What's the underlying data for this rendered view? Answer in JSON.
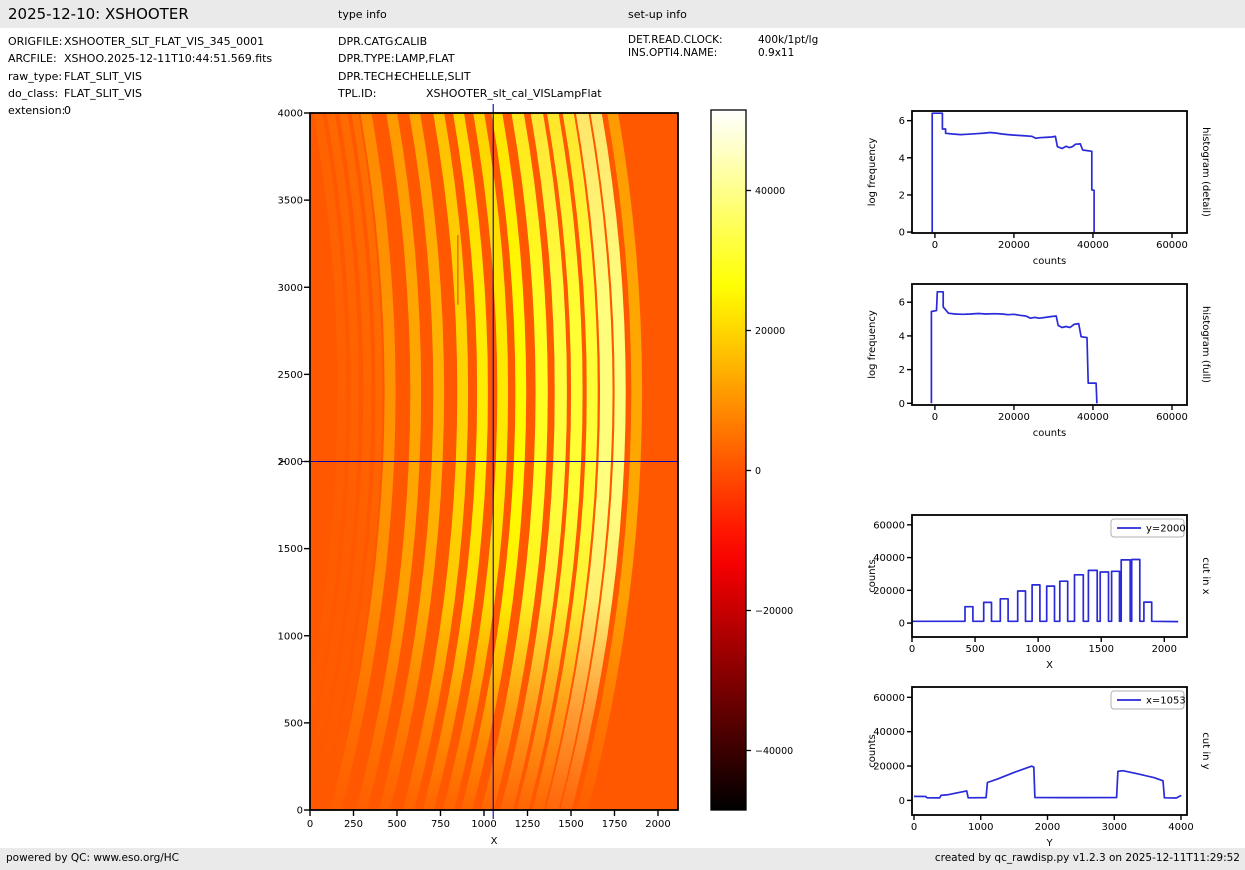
{
  "header": {
    "title": "2025-12-10: XSHOOTER",
    "type_info_heading": "type info",
    "setup_info_heading": "set-up info"
  },
  "file_info": {
    "rows": [
      {
        "label": "ORIGFILE:",
        "value": "XSHOOTER_SLT_FLAT_VIS_345_0001"
      },
      {
        "label": "ARCFILE:",
        "value": "XSHOO.2025-12-11T10:44:51.569.fits"
      },
      {
        "label": "raw_type:",
        "value": "FLAT_SLIT_VIS"
      },
      {
        "label": "do_class:",
        "value": "FLAT_SLIT_VIS"
      },
      {
        "label": "extension:",
        "value": "0"
      }
    ]
  },
  "type_info": {
    "rows": [
      {
        "label": "DPR.CATG:",
        "value": "CALIB"
      },
      {
        "label": "DPR.TYPE:",
        "value": "LAMP,FLAT"
      },
      {
        "label": "DPR.TECH:",
        "value": "ECHELLE,SLIT"
      },
      {
        "label": "TPL.ID:",
        "value": "XSHOOTER_slt_cal_VISLampFlat"
      }
    ]
  },
  "setup_info": {
    "rows": [
      {
        "label": "DET.READ.CLOCK:",
        "value": "400k/1pt/lg"
      },
      {
        "label": "INS.OPTI4.NAME:",
        "value": "0.9x11"
      }
    ]
  },
  "footer": {
    "left": "powered by QC: www.eso.org/HC",
    "right": "created by qc_rawdisp.py v1.2.3 on 2025-12-11T11:29:52"
  },
  "chart_data": [
    {
      "id": "main_image",
      "type": "heatmap",
      "xlabel": "X",
      "ylabel": "Y",
      "x_ticks": [
        0,
        250,
        500,
        750,
        1000,
        1250,
        1500,
        1750,
        2000
      ],
      "y_ticks": [
        0,
        500,
        1000,
        1500,
        2000,
        2500,
        3000,
        3500,
        4000
      ],
      "xlim": [
        0,
        2115
      ],
      "ylim": [
        0,
        4000
      ],
      "colormap": "hot",
      "clim": [
        -48500,
        51500
      ],
      "background_counts": 1200,
      "crosshair": {
        "x": 1053,
        "y": 2000
      },
      "curvature": {
        "apex_y": 2400,
        "coeff": 5.4e-05
      },
      "orders_at_y2000": [
        {
          "x_start": 420,
          "x_end": 483,
          "counts": 10000
        },
        {
          "x_start": 568,
          "x_end": 630,
          "counts": 12600
        },
        {
          "x_start": 700,
          "x_end": 762,
          "counts": 14800
        },
        {
          "x_start": 838,
          "x_end": 900,
          "counts": 19600
        },
        {
          "x_start": 952,
          "x_end": 1014,
          "counts": 23300
        },
        {
          "x_start": 1068,
          "x_end": 1130,
          "counts": 22600
        },
        {
          "x_start": 1172,
          "x_end": 1234,
          "counts": 25600
        },
        {
          "x_start": 1288,
          "x_end": 1358,
          "counts": 29500
        },
        {
          "x_start": 1398,
          "x_end": 1468,
          "counts": 32200
        },
        {
          "x_start": 1492,
          "x_end": 1558,
          "counts": 31200
        },
        {
          "x_start": 1582,
          "x_end": 1645,
          "counts": 31600
        },
        {
          "x_start": 1658,
          "x_end": 1730,
          "counts": 38600
        },
        {
          "x_start": 1742,
          "x_end": 1806,
          "counts": 38800
        },
        {
          "x_start": 1838,
          "x_end": 1900,
          "counts": 12800
        }
      ],
      "faint_orders": [
        {
          "x_start": 150,
          "x_end": 200,
          "counts": 3000
        },
        {
          "x_start": 225,
          "x_end": 272,
          "counts": 3600
        },
        {
          "x_start": 298,
          "x_end": 345,
          "counts": 4200
        },
        {
          "x_start": 368,
          "x_end": 408,
          "counts": 4800
        }
      ],
      "artifact_line": {
        "x": 850,
        "y_start": 2900,
        "y_end": 3300
      }
    },
    {
      "id": "colorbar",
      "type": "colorbar",
      "colormap": "hot",
      "vmin": -48500,
      "vmax": 51500,
      "ticks": [
        40000,
        20000,
        0,
        -20000,
        -40000
      ]
    },
    {
      "id": "hist_detail",
      "type": "line",
      "right_label": "histogram (detail)",
      "xlabel": "counts",
      "ylabel": "log frequency",
      "x_ticks": [
        0,
        20000,
        40000,
        60000
      ],
      "y_ticks": [
        0,
        2,
        4,
        6
      ],
      "xlim": [
        -5800,
        63800
      ],
      "ylim": [
        -0.05,
        6.52
      ],
      "line_color": "#2a2ad8",
      "points": [
        [
          -700,
          0
        ],
        [
          -700,
          6.4
        ],
        [
          1900,
          6.4
        ],
        [
          1900,
          5.55
        ],
        [
          2700,
          5.55
        ],
        [
          2700,
          5.32
        ],
        [
          4500,
          5.28
        ],
        [
          6500,
          5.25
        ],
        [
          8500,
          5.27
        ],
        [
          10500,
          5.3
        ],
        [
          12500,
          5.33
        ],
        [
          14000,
          5.36
        ],
        [
          15500,
          5.33
        ],
        [
          17000,
          5.28
        ],
        [
          18500,
          5.25
        ],
        [
          20000,
          5.22
        ],
        [
          21500,
          5.2
        ],
        [
          23000,
          5.18
        ],
        [
          24500,
          5.16
        ],
        [
          25500,
          5.05
        ],
        [
          26500,
          5.08
        ],
        [
          28000,
          5.1
        ],
        [
          29500,
          5.12
        ],
        [
          30500,
          5.15
        ],
        [
          31000,
          4.6
        ],
        [
          32200,
          4.5
        ],
        [
          33200,
          4.62
        ],
        [
          34000,
          4.55
        ],
        [
          34800,
          4.6
        ],
        [
          35600,
          4.73
        ],
        [
          36800,
          4.75
        ],
        [
          37400,
          4.42
        ],
        [
          39700,
          4.35
        ],
        [
          39700,
          2.27
        ],
        [
          40300,
          2.25
        ],
        [
          40300,
          0
        ]
      ]
    },
    {
      "id": "hist_full",
      "type": "line",
      "right_label": "histogram (full)",
      "xlabel": "counts",
      "ylabel": "log frequency",
      "x_ticks": [
        0,
        20000,
        40000,
        60000
      ],
      "y_ticks": [
        0,
        2,
        4,
        6
      ],
      "xlim": [
        -5800,
        63800
      ],
      "ylim": [
        -0.1,
        7.08
      ],
      "line_color": "#2a2ad8",
      "points": [
        [
          -900,
          0
        ],
        [
          -900,
          5.45
        ],
        [
          400,
          5.5
        ],
        [
          600,
          6.62
        ],
        [
          2100,
          6.62
        ],
        [
          2100,
          5.72
        ],
        [
          2700,
          5.55
        ],
        [
          3400,
          5.35
        ],
        [
          5000,
          5.3
        ],
        [
          7000,
          5.28
        ],
        [
          9000,
          5.3
        ],
        [
          11000,
          5.33
        ],
        [
          13000,
          5.3
        ],
        [
          15000,
          5.32
        ],
        [
          17000,
          5.3
        ],
        [
          18500,
          5.26
        ],
        [
          20000,
          5.28
        ],
        [
          21500,
          5.22
        ],
        [
          23000,
          5.18
        ],
        [
          24200,
          5.05
        ],
        [
          25200,
          5.1
        ],
        [
          26500,
          5.05
        ],
        [
          28000,
          5.1
        ],
        [
          29500,
          5.15
        ],
        [
          30700,
          5.18
        ],
        [
          31200,
          4.62
        ],
        [
          32200,
          4.5
        ],
        [
          33200,
          4.56
        ],
        [
          34200,
          4.5
        ],
        [
          35200,
          4.68
        ],
        [
          36400,
          4.73
        ],
        [
          37000,
          3.95
        ],
        [
          38500,
          3.9
        ],
        [
          38800,
          1.2
        ],
        [
          40800,
          1.2
        ],
        [
          41000,
          0
        ]
      ]
    },
    {
      "id": "cut_x",
      "type": "line",
      "legend": "y=2000",
      "right_label": "cut in x",
      "xlabel": "X",
      "ylabel": "counts",
      "x_ticks": [
        0,
        500,
        1000,
        1500,
        2000
      ],
      "y_ticks": [
        0,
        20000,
        40000,
        60000
      ],
      "xlim": [
        0,
        2180
      ],
      "ylim": [
        -8500,
        66000
      ],
      "line_color": "#2a2ad8",
      "baseline": 1100,
      "pulses": [
        [
          420,
          483,
          10000
        ],
        [
          568,
          630,
          12600
        ],
        [
          700,
          762,
          14800
        ],
        [
          838,
          900,
          19600
        ],
        [
          952,
          1014,
          23300
        ],
        [
          1068,
          1130,
          22600
        ],
        [
          1172,
          1234,
          25600
        ],
        [
          1288,
          1358,
          29500
        ],
        [
          1398,
          1468,
          32200
        ],
        [
          1492,
          1558,
          31200
        ],
        [
          1582,
          1645,
          31600
        ],
        [
          1658,
          1730,
          38600
        ],
        [
          1742,
          1806,
          38800
        ],
        [
          1838,
          1900,
          12800
        ]
      ],
      "x_end": 2110,
      "end_level": 900
    },
    {
      "id": "cut_y",
      "type": "line",
      "legend": "x=1053",
      "right_label": "cut in y",
      "xlabel": "Y",
      "ylabel": "counts",
      "x_ticks": [
        0,
        1000,
        2000,
        3000,
        4000
      ],
      "y_ticks": [
        0,
        20000,
        40000,
        60000
      ],
      "xlim": [
        -30,
        4090
      ],
      "ylim": [
        -8500,
        66000
      ],
      "line_color": "#2a2ad8",
      "points": [
        [
          0,
          2300
        ],
        [
          175,
          2250
        ],
        [
          195,
          1500
        ],
        [
          385,
          1450
        ],
        [
          405,
          2900
        ],
        [
          520,
          3400
        ],
        [
          790,
          5500
        ],
        [
          812,
          1500
        ],
        [
          1080,
          1600
        ],
        [
          1100,
          10400
        ],
        [
          1250,
          12400
        ],
        [
          1500,
          16300
        ],
        [
          1760,
          19900
        ],
        [
          1795,
          19400
        ],
        [
          1812,
          1700
        ],
        [
          2300,
          1650
        ],
        [
          3035,
          1700
        ],
        [
          3055,
          16900
        ],
        [
          3130,
          17300
        ],
        [
          3350,
          15500
        ],
        [
          3600,
          13200
        ],
        [
          3730,
          11400
        ],
        [
          3752,
          1500
        ],
        [
          3930,
          1400
        ],
        [
          4005,
          2900
        ]
      ]
    }
  ]
}
